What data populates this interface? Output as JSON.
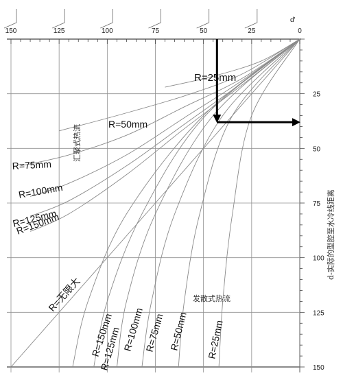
{
  "chart_data": {
    "type": "line",
    "title": "",
    "top_axis": {
      "label": "d'",
      "ticks": [
        150,
        125,
        100,
        75,
        50,
        25,
        0
      ],
      "range": [
        150,
        0
      ]
    },
    "right_axis": {
      "label": "d-实际的型腔至水冷线距离",
      "ticks": [
        25,
        50,
        75,
        100,
        125,
        150
      ],
      "range": [
        0,
        150
      ]
    },
    "converging_family": {
      "label": "汇聚式热流",
      "series": [
        {
          "name": "R=25mm",
          "label_text": "R=25mm",
          "points": [
            [
              0,
              0
            ],
            [
              20,
              10
            ],
            [
              45,
              17
            ],
            [
              70,
              22
            ]
          ]
        },
        {
          "name": "R=50mm",
          "label_text": "R=50mm",
          "points": [
            [
              0,
              0
            ],
            [
              30,
              16
            ],
            [
              60,
              26
            ],
            [
              95,
              35
            ],
            [
              125,
              42
            ]
          ]
        },
        {
          "name": "R=75mm",
          "label_text": "R=75mm",
          "points": [
            [
              0,
              0
            ],
            [
              30,
              18
            ],
            [
              60,
              31
            ],
            [
              90,
              44
            ],
            [
              120,
              53
            ],
            [
              145,
              58
            ]
          ]
        },
        {
          "name": "R=100mm",
          "label_text": "R=100mm",
          "points": [
            [
              0,
              0
            ],
            [
              30,
              19
            ],
            [
              60,
              36
            ],
            [
              90,
              53
            ],
            [
              120,
              66
            ],
            [
              140,
              72
            ]
          ]
        },
        {
          "name": "R=125mm",
          "label_text": "R=125mm",
          "points": [
            [
              0,
              0
            ],
            [
              30,
              20
            ],
            [
              60,
              39
            ],
            [
              90,
              58
            ],
            [
              120,
              74
            ],
            [
              140,
              81
            ]
          ]
        },
        {
          "name": "R=150mm",
          "label_text": "R=150mm",
          "points": [
            [
              0,
              0
            ],
            [
              30,
              21
            ],
            [
              60,
              41
            ],
            [
              90,
              62
            ],
            [
              120,
              80
            ],
            [
              140,
              88
            ]
          ]
        }
      ]
    },
    "diverging_family": {
      "label": "发散式热流",
      "series": [
        {
          "name": "R=无限大",
          "label_text": "R=无限大",
          "points": [
            [
              0,
              0
            ],
            [
              150,
              150
            ]
          ]
        },
        {
          "name": "R=150mm",
          "label_text": "R=150mm",
          "points": [
            [
              0,
              0
            ],
            [
              50,
              35
            ],
            [
              90,
              80
            ],
            [
              110,
              120
            ],
            [
              118,
              150
            ]
          ]
        },
        {
          "name": "R=125mm",
          "label_text": "R=125mm",
          "points": [
            [
              0,
              0
            ],
            [
              50,
              36
            ],
            [
              82,
              80
            ],
            [
              100,
              120
            ],
            [
              107,
              150
            ]
          ]
        },
        {
          "name": "R=100mm",
          "label_text": "R=100mm",
          "points": [
            [
              0,
              0
            ],
            [
              45,
              35
            ],
            [
              75,
              80
            ],
            [
              90,
              120
            ],
            [
              95,
              150
            ]
          ]
        },
        {
          "name": "R=75mm",
          "label_text": "R=75mm",
          "points": [
            [
              0,
              0
            ],
            [
              40,
              35
            ],
            [
              65,
              80
            ],
            [
              77,
              120
            ],
            [
              82,
              150
            ]
          ]
        },
        {
          "name": "R=50mm",
          "label_text": "R=50mm",
          "points": [
            [
              0,
              0
            ],
            [
              35,
              35
            ],
            [
              52,
              80
            ],
            [
              60,
              120
            ],
            [
              63,
              150
            ]
          ]
        },
        {
          "name": "R=25mm",
          "label_text": "R=25mm",
          "points": [
            [
              0,
              0
            ],
            [
              25,
              35
            ],
            [
              35,
              80
            ],
            [
              40,
              120
            ],
            [
              42,
              150
            ]
          ]
        }
      ]
    },
    "example_path": {
      "d_prime": 43,
      "d": 38
    },
    "colors": {
      "grid": "#8f8f8f",
      "curve": "#8a8a8a",
      "arrow": "#000000"
    }
  }
}
